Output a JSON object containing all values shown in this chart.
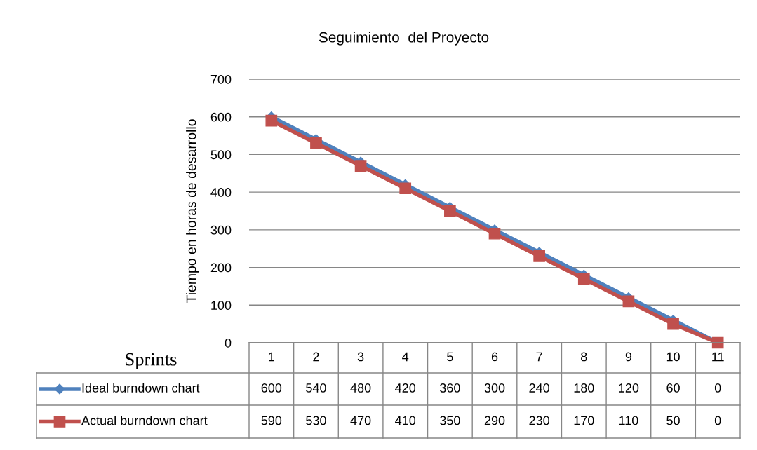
{
  "chart_data": {
    "type": "line",
    "title": "Seguimiento  del Proyecto",
    "xlabel": "Sprints",
    "ylabel": "Tiempo en horas de desarrollo",
    "categories": [
      "1",
      "2",
      "3",
      "4",
      "5",
      "6",
      "7",
      "8",
      "9",
      "10",
      "11"
    ],
    "series": [
      {
        "name": "Ideal burndown chart",
        "color": "#4f81bd",
        "marker": "diamond",
        "values": [
          600,
          540,
          480,
          420,
          360,
          300,
          240,
          180,
          120,
          60,
          0
        ]
      },
      {
        "name": "Actual burndown chart",
        "color": "#c0504d",
        "marker": "square",
        "values": [
          590,
          530,
          470,
          410,
          350,
          290,
          230,
          170,
          110,
          50,
          0
        ]
      }
    ],
    "ylim": [
      0,
      700
    ],
    "yticks": [
      0,
      100,
      200,
      300,
      400,
      500,
      600,
      700
    ],
    "grid": "y",
    "legend": "bottom left",
    "data_labels": true,
    "line_style": "solid"
  }
}
